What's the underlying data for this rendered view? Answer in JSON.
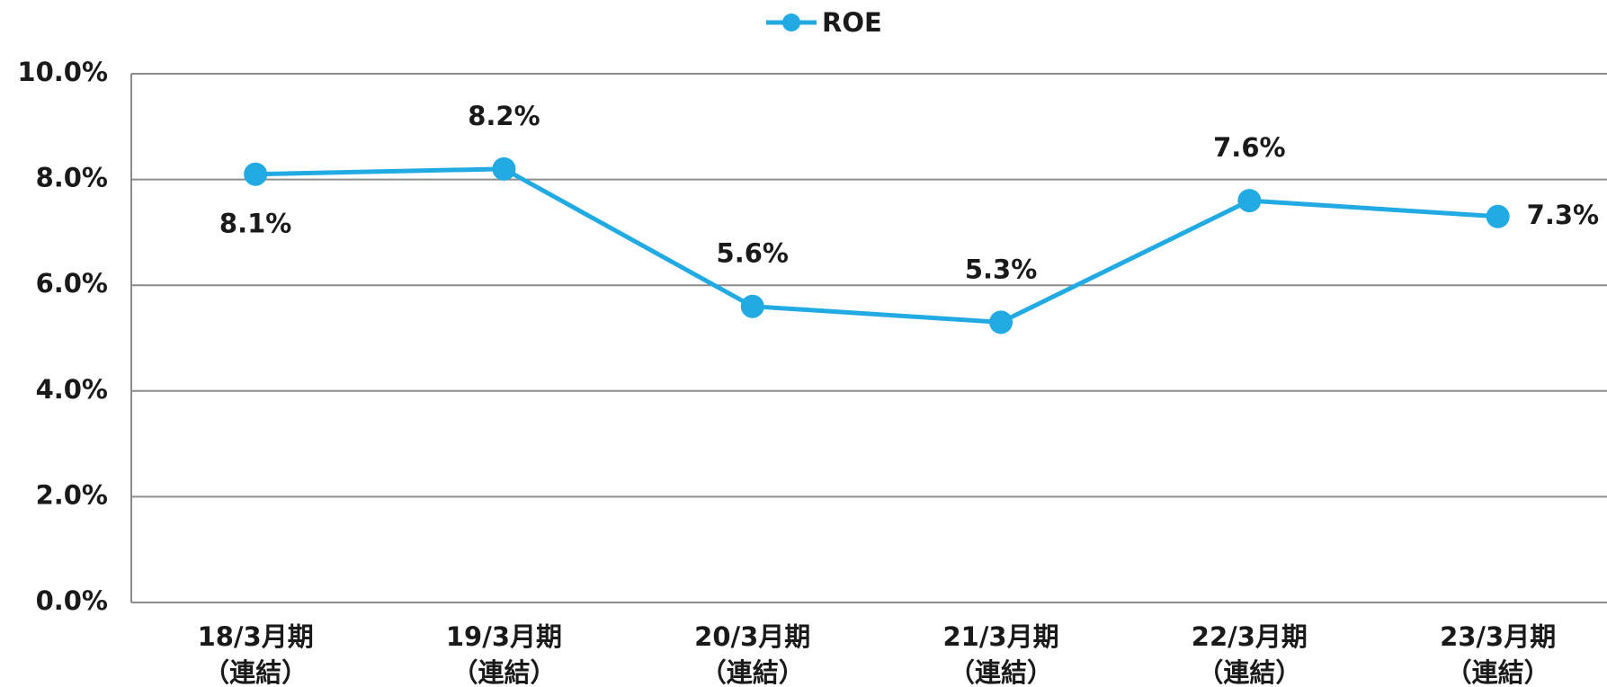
{
  "chart_data": {
    "type": "line",
    "categories": [
      [
        "18/3月期",
        "（連結）"
      ],
      [
        "19/3月期",
        "（連結）"
      ],
      [
        "20/3月期",
        "（連結）"
      ],
      [
        "21/3月期",
        "（連結）"
      ],
      [
        "22/3月期",
        "（連結）"
      ],
      [
        "23/3月期",
        "（連結）"
      ]
    ],
    "series": [
      {
        "name": "ROE",
        "color": "#22aae2",
        "values": [
          8.1,
          8.2,
          5.6,
          5.3,
          7.6,
          7.3
        ],
        "value_labels": [
          "8.1%",
          "8.2%",
          "5.6%",
          "5.3%",
          "7.6%",
          "7.3%"
        ]
      }
    ],
    "ylim": [
      0,
      10
    ],
    "yticks": [
      {
        "value": 0,
        "label": "0.0%"
      },
      {
        "value": 2,
        "label": "2.0%"
      },
      {
        "value": 4,
        "label": "4.0%"
      },
      {
        "value": 6,
        "label": "6.0%"
      },
      {
        "value": 8,
        "label": "8.0%"
      },
      {
        "value": 10,
        "label": "10.0%"
      }
    ],
    "grid": true,
    "legend": "top"
  }
}
